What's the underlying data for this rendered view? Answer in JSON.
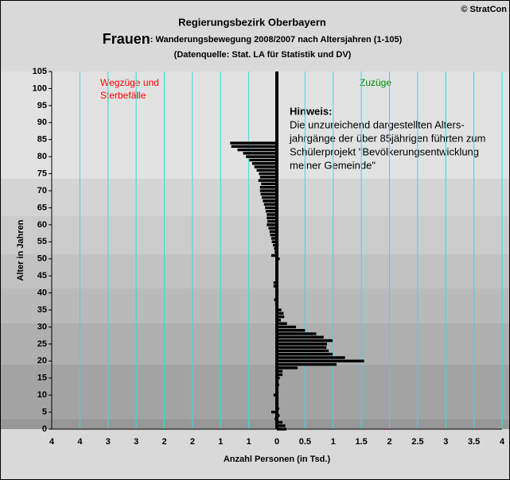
{
  "chart_data": {
    "type": "hbar",
    "supertitle": "Regierungsbezirk Oberbayern",
    "title_prefix": "Frauen",
    "title": ": Wanderungsbewegung 2008/2007 nach Altersjahren (1-105)",
    "subtitle": "(Datenquelle: Stat. LA für Statistik und DV)",
    "copyright": "© StratCon",
    "left_label": [
      "Wegzüge und",
      "Sterbefälle"
    ],
    "right_label": "Zuzüge",
    "note_title": "Hinweis:",
    "note_lines": [
      "Die unzureichend dargestellten Alters-",
      "jahrgänge der über 85jährigen führten zum",
      "Schülerprojekt \"Bevölkerungsentwicklung",
      "meiner Gemeinde\""
    ],
    "xlabel": "Anzahl Personen (in Tsd.)",
    "ylabel": "Alter in Jahren",
    "color": "#000000",
    "grid": true,
    "grid_color": "#33dddd",
    "xlim": [
      -4,
      4
    ],
    "xticks": [
      {
        "value": -4,
        "label": "4"
      },
      {
        "value": -3.5,
        "label": "4"
      },
      {
        "value": -3,
        "label": "3"
      },
      {
        "value": -2.5,
        "label": "3"
      },
      {
        "value": -2,
        "label": "2"
      },
      {
        "value": -1.5,
        "label": "2"
      },
      {
        "value": -1,
        "label": "1"
      },
      {
        "value": -0.5,
        "label": "1"
      },
      0,
      0.5,
      1,
      1.5,
      2,
      2.5,
      3,
      3.5,
      4
    ],
    "ylim": [
      0,
      105
    ],
    "yticks": [
      0,
      5,
      10,
      15,
      20,
      25,
      30,
      35,
      40,
      45,
      50,
      55,
      60,
      65,
      70,
      75,
      80,
      85,
      90,
      95,
      100,
      105
    ],
    "x": [
      0,
      1,
      2,
      3,
      4,
      5,
      6,
      7,
      8,
      9,
      10,
      11,
      12,
      13,
      14,
      15,
      16,
      17,
      18,
      19,
      20,
      21,
      22,
      23,
      24,
      25,
      26,
      27,
      28,
      29,
      30,
      31,
      32,
      33,
      34,
      35,
      36,
      37,
      38,
      39,
      40,
      41,
      42,
      43,
      44,
      45,
      46,
      47,
      48,
      49,
      50,
      51,
      52,
      53,
      54,
      55,
      56,
      57,
      58,
      59,
      60,
      61,
      62,
      63,
      64,
      65,
      66,
      67,
      68,
      69,
      70,
      71,
      72,
      73,
      74,
      75,
      76,
      77,
      78,
      79,
      80,
      81,
      82,
      83,
      84
    ],
    "values": [
      0.17,
      0.15,
      0.1,
      -0.04,
      0.05,
      -0.1,
      0.04,
      0.03,
      0.02,
      0.03,
      -0.06,
      0.03,
      0.02,
      0.04,
      0.03,
      0.05,
      0.1,
      0.1,
      0.37,
      1.06,
      1.55,
      1.21,
      0.99,
      0.92,
      0.88,
      0.89,
      0.99,
      0.83,
      0.7,
      0.5,
      0.34,
      0.18,
      0.07,
      0.13,
      0.12,
      0.08,
      0.02,
      -0.03,
      -0.05,
      0.02,
      0.01,
      -0.02,
      -0.06,
      -0.06,
      0.02,
      0.01,
      0.02,
      0.01,
      -0.02,
      0.02,
      0.05,
      -0.1,
      -0.04,
      -0.05,
      -0.07,
      -0.09,
      -0.1,
      -0.12,
      -0.13,
      -0.15,
      -0.18,
      -0.17,
      -0.18,
      -0.18,
      -0.2,
      -0.21,
      -0.23,
      -0.25,
      -0.27,
      -0.29,
      -0.3,
      -0.3,
      -0.28,
      -0.33,
      -0.3,
      -0.32,
      -0.36,
      -0.4,
      -0.44,
      -0.49,
      -0.55,
      -0.6,
      -0.7,
      -0.81,
      -0.83
    ]
  }
}
